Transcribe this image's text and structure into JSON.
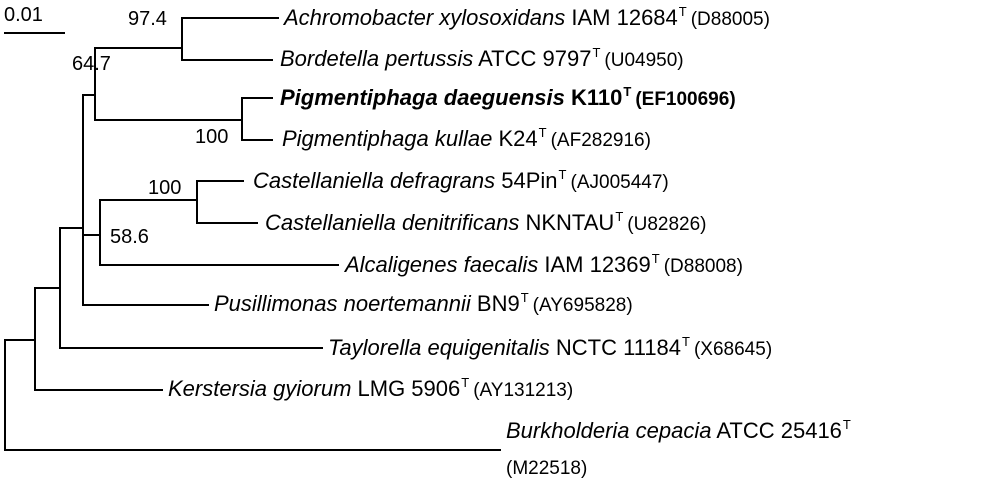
{
  "scale_bar": {
    "label": "0.01"
  },
  "support_values": {
    "achromobacter_bordetella": "97.4",
    "upper_clade": "64.7",
    "pigmentiphaga": "100",
    "castellaniella": "100",
    "castellaniella_alcaligenes": "58.6"
  },
  "taxa": [
    {
      "genus_species": "Achromobacter xylosoxidans",
      "strain": "IAM 12684",
      "type_mark": "T",
      "accession": "(D88005)",
      "bold": false
    },
    {
      "genus_species": "Bordetella pertussis",
      "strain": "ATCC 9797",
      "type_mark": "T",
      "accession": "(U04950)",
      "bold": false
    },
    {
      "genus_species": "Pigmentiphaga daeguensis",
      "strain": "K110",
      "type_mark": "T",
      "accession": "(EF100696)",
      "bold": true
    },
    {
      "genus_species": "Pigmentiphaga kullae",
      "strain": "K24",
      "type_mark": "T",
      "accession": "(AF282916)",
      "bold": false
    },
    {
      "genus_species": "Castellaniella defragrans",
      "strain": "54Pin",
      "type_mark": "T",
      "accession": "(AJ005447)",
      "bold": false
    },
    {
      "genus_species": "Castellaniella denitrificans",
      "strain": "NKNTAU",
      "type_mark": "T",
      "accession": "(U82826)",
      "bold": false
    },
    {
      "genus_species": "Alcaligenes faecalis",
      "strain": "IAM 12369",
      "type_mark": "T",
      "accession": "(D88008)",
      "bold": false
    },
    {
      "genus_species": "Pusillimonas noertemannii",
      "strain": "BN9",
      "type_mark": "T",
      "accession": "(AY695828)",
      "bold": false
    },
    {
      "genus_species": "Taylorella equigenitalis",
      "strain": "NCTC 11184",
      "type_mark": "T",
      "accession": "(X68645)",
      "bold": false
    },
    {
      "genus_species": "Kerstersia gyiorum",
      "strain": "LMG 5906",
      "type_mark": "T",
      "accession": "(AY131213)",
      "bold": false
    },
    {
      "genus_species": "Burkholderia cepacia",
      "strain": "ATCC 25416",
      "type_mark": "T",
      "accession": "(M22518)",
      "bold": false
    }
  ]
}
